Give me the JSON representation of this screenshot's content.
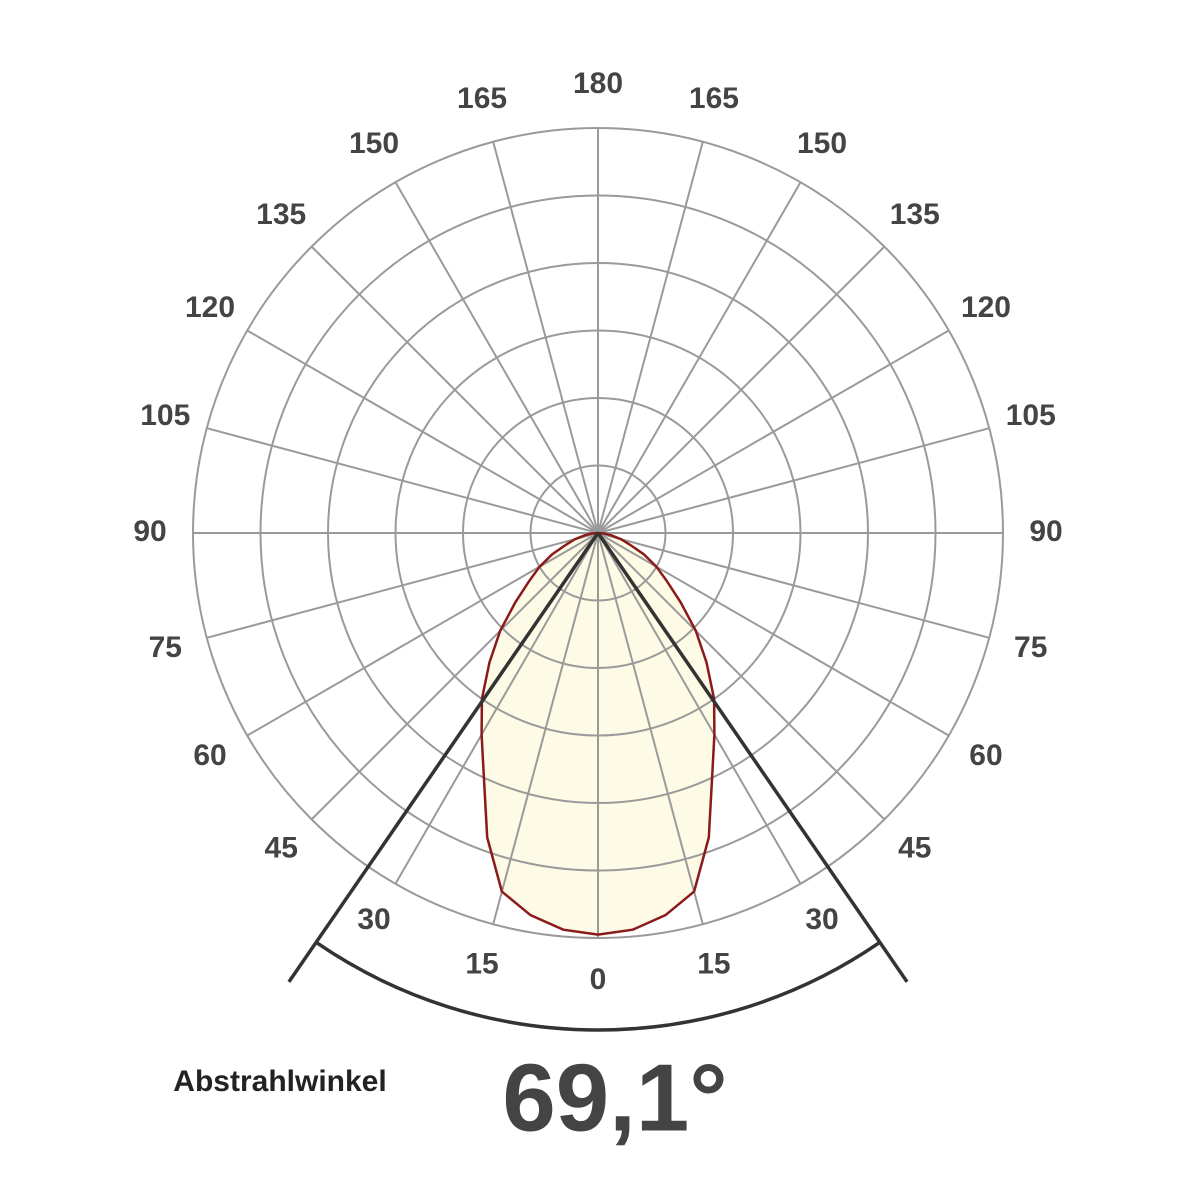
{
  "chart_data": {
    "type": "polar",
    "angle_ticks": [
      0,
      15,
      30,
      45,
      60,
      75,
      90,
      105,
      120,
      135,
      150,
      165,
      180
    ],
    "rlim": [
      0,
      6
    ],
    "rticks": [
      1,
      2,
      3,
      4,
      5,
      6
    ],
    "angles": [
      0,
      5,
      10,
      15,
      20,
      25,
      30,
      35,
      40,
      45,
      50,
      55,
      60,
      65,
      70,
      75,
      80,
      85,
      90
    ],
    "values": [
      5.95,
      5.9,
      5.75,
      5.5,
      4.8,
      4.0,
      3.45,
      3.0,
      2.5,
      2.05,
      1.6,
      1.25,
      1.0,
      0.75,
      0.5,
      0.35,
      0.2,
      0.1,
      0
    ],
    "color": "#8b1a1a",
    "fill": "#fdfbe6",
    "grid": true,
    "beam_label": "Abstrahlwinkel",
    "beam_angle": {
      "value": 69.1,
      "label": "69,1°"
    }
  }
}
